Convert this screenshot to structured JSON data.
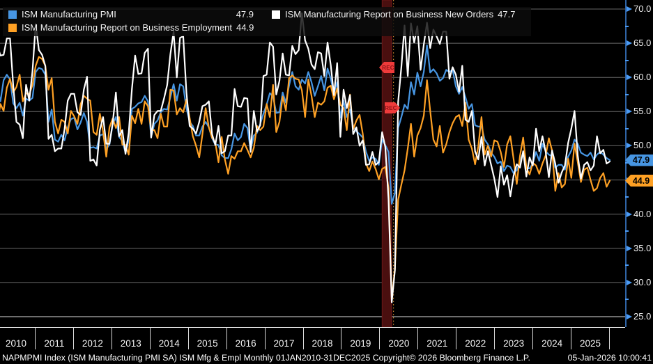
{
  "legend": {
    "items": [
      {
        "name": "ISM Manufacturing PMI",
        "value": "47.9",
        "color": "#4796e3"
      },
      {
        "name": "ISM Manufacturing Report on Business Employment",
        "value": "44.9",
        "color": "#ffa124"
      },
      {
        "name": "ISM Manufacturing Report on Business New Orders",
        "value": "47.7",
        "color": "#ffffff"
      }
    ]
  },
  "rec_tags": {
    "label_1": "REC",
    "label_2": "REC"
  },
  "y_axis": {
    "ticks": [
      70,
      65,
      60,
      55,
      50,
      45,
      40,
      35,
      30,
      25
    ],
    "minor_step": 2.5
  },
  "x_axis": {
    "years": [
      "2010",
      "2011",
      "2012",
      "2013",
      "2014",
      "2015",
      "2016",
      "2017",
      "2018",
      "2019",
      "2020",
      "2021",
      "2022",
      "2023",
      "2024",
      "2025"
    ]
  },
  "badges": [
    {
      "value": "47.9",
      "color_class": "badge-blue"
    },
    {
      "value": "44.9",
      "color_class": "badge-orange"
    }
  ],
  "status_bar": {
    "left": "NAPMPMI Index (ISM Manufacturing PMI SA) ISM Mfg & Empl Monthly 01JAN2010-31DEC2025  Copyright© 2026 Bloomberg Finance L.P.",
    "right": "05-Jan-2026 10:00:41"
  },
  "colors": {
    "pmi_line": "#4796e3",
    "employment_line": "#ffa124",
    "new_orders_line": "#ffffff",
    "axis_blue": "#4b9bf5",
    "recession_band": "#4a0f0f",
    "rec_tag_red": "#ef3b3b"
  },
  "chart_data": {
    "type": "line",
    "title": "",
    "x_unit": "monthly",
    "x_start_year": 2010,
    "x_range": [
      "01JAN2010",
      "31DEC2025"
    ],
    "ylim": [
      25,
      70
    ],
    "grid": true,
    "legend_position": "top-left",
    "recession_band": {
      "start": "2020-01",
      "end": "2020-03"
    },
    "series": [
      {
        "name": "ISM Manufacturing PMI",
        "color": "#4796e3",
        "last": 47.9,
        "values": [
          58.4,
          56.5,
          59.6,
          60.4,
          59.7,
          56.2,
          55.5,
          56.3,
          54.4,
          56.9,
          56.6,
          57.0,
          60.8,
          61.4,
          61.2,
          60.4,
          53.5,
          55.3,
          50.9,
          50.6,
          51.6,
          50.8,
          52.7,
          53.9,
          54.1,
          52.4,
          53.4,
          54.8,
          53.5,
          49.7,
          49.8,
          49.6,
          51.5,
          51.7,
          49.5,
          50.2,
          53.1,
          54.2,
          51.3,
          50.7,
          49.0,
          50.9,
          55.4,
          55.7,
          56.2,
          56.4,
          57.3,
          56.5,
          51.3,
          53.2,
          53.7,
          54.9,
          55.4,
          55.3,
          57.1,
          59.0,
          56.6,
          59.0,
          58.7,
          55.5,
          53.5,
          52.9,
          51.5,
          51.5,
          52.8,
          53.5,
          52.7,
          51.1,
          50.2,
          50.1,
          48.6,
          48.2,
          48.2,
          49.5,
          51.8,
          50.8,
          51.3,
          53.2,
          52.6,
          49.4,
          51.5,
          51.9,
          53.2,
          54.7,
          56.0,
          57.7,
          57.2,
          54.8,
          54.9,
          57.8,
          56.3,
          58.8,
          60.8,
          58.7,
          58.2,
          59.7,
          59.1,
          60.8,
          59.3,
          57.3,
          58.7,
          60.2,
          58.1,
          61.3,
          59.8,
          57.7,
          59.3,
          54.1,
          56.6,
          54.2,
          55.3,
          52.8,
          52.1,
          51.7,
          51.2,
          49.1,
          47.8,
          48.3,
          48.1,
          47.2,
          50.9,
          50.1,
          49.1,
          41.5,
          43.1,
          52.6,
          54.2,
          56.0,
          55.4,
          59.3,
          57.5,
          60.7,
          58.7,
          60.8,
          64.7,
          60.7,
          61.2,
          60.6,
          59.5,
          59.9,
          61.1,
          60.8,
          61.1,
          58.7,
          57.6,
          58.6,
          57.1,
          55.4,
          56.1,
          53.0,
          52.8,
          52.8,
          50.9,
          50.2,
          49.0,
          48.4,
          47.4,
          47.7,
          46.3,
          47.1,
          46.9,
          46.0,
          46.4,
          47.6,
          49.0,
          46.7,
          46.7,
          47.4,
          49.1,
          47.8,
          50.3,
          49.2,
          48.7,
          48.5,
          46.8,
          47.2,
          47.2,
          46.5,
          48.4,
          49.3,
          50.9,
          50.3,
          49.0,
          48.7,
          48.5,
          49.0,
          48.0,
          48.7,
          49.1,
          48.7,
          48.2,
          47.9
        ]
      },
      {
        "name": "ISM Manufacturing Report on Business Employment",
        "color": "#ffa124",
        "last": 44.9,
        "values": [
          53.3,
          56.1,
          55.1,
          58.5,
          59.8,
          57.8,
          58.6,
          60.4,
          56.5,
          57.7,
          57.5,
          58.9,
          61.7,
          63.0,
          62.7,
          61.7,
          58.2,
          59.9,
          53.5,
          51.8,
          53.8,
          53.5,
          51.8,
          55.1,
          54.3,
          53.2,
          56.1,
          57.3,
          56.9,
          56.6,
          52.0,
          51.6,
          54.7,
          52.1,
          48.4,
          52.7,
          54.0,
          52.6,
          54.2,
          50.2,
          50.1,
          48.7,
          54.4,
          53.3,
          55.4,
          53.2,
          56.5,
          55.8,
          52.3,
          52.3,
          51.1,
          54.7,
          52.8,
          52.8,
          58.2,
          58.1,
          54.6,
          55.5,
          54.9,
          56.8,
          54.1,
          51.4,
          50.0,
          48.3,
          51.7,
          55.5,
          52.7,
          51.2,
          50.5,
          47.6,
          51.3,
          48.0,
          45.9,
          48.5,
          48.1,
          49.2,
          49.2,
          50.4,
          49.4,
          48.3,
          49.7,
          52.9,
          52.3,
          52.8,
          56.1,
          54.2,
          58.9,
          52.0,
          53.5,
          57.2,
          55.2,
          59.9,
          60.3,
          59.8,
          59.7,
          58.1,
          54.2,
          59.7,
          57.3,
          54.2,
          56.3,
          56.0,
          56.5,
          58.5,
          58.8,
          56.8,
          58.4,
          56.0,
          55.5,
          52.3,
          57.5,
          52.4,
          53.7,
          54.5,
          51.7,
          47.4,
          46.3,
          47.7,
          46.6,
          45.1,
          46.6,
          46.9,
          43.8,
          27.5,
          32.1,
          42.1,
          44.3,
          46.4,
          49.6,
          53.2,
          48.4,
          51.5,
          52.6,
          54.4,
          59.6,
          55.1,
          50.9,
          49.9,
          52.9,
          49.0,
          50.2,
          52.0,
          53.3,
          54.2,
          54.5,
          52.9,
          56.3,
          50.9,
          49.6,
          47.3,
          49.9,
          54.2,
          48.7,
          50.0,
          48.4,
          50.8,
          50.6,
          49.1,
          46.9,
          50.2,
          51.4,
          48.1,
          44.4,
          48.5,
          51.2,
          46.8,
          45.8,
          47.5,
          47.1,
          45.9,
          47.4,
          48.6,
          51.1,
          49.3,
          43.4,
          46.0,
          43.9,
          44.4,
          48.1,
          45.3,
          50.3,
          47.6,
          44.7,
          46.5,
          46.8,
          45.0,
          43.4,
          43.8,
          45.3,
          46.0,
          44.0,
          44.9
        ]
      },
      {
        "name": "ISM Manufacturing Report on Business New Orders",
        "color": "#ffffff",
        "last": 47.7,
        "values": [
          64.8,
          63.2,
          63.3,
          65.7,
          65.7,
          58.8,
          53.5,
          53.1,
          51.1,
          58.9,
          56.6,
          60.9,
          67.8,
          64.0,
          63.3,
          61.7,
          51.0,
          51.6,
          49.2,
          49.6,
          49.6,
          52.4,
          56.6,
          57.6,
          57.6,
          54.9,
          54.5,
          58.2,
          60.1,
          47.8,
          48.0,
          47.1,
          52.3,
          54.2,
          50.3,
          50.3,
          53.3,
          57.8,
          51.4,
          52.3,
          48.8,
          51.9,
          58.3,
          63.2,
          60.5,
          60.6,
          63.6,
          64.2,
          51.2,
          54.5,
          55.1,
          55.1,
          56.9,
          58.9,
          63.4,
          66.7,
          60.0,
          65.8,
          66.0,
          57.8,
          52.9,
          52.5,
          51.8,
          53.5,
          55.8,
          56.0,
          56.5,
          51.7,
          50.1,
          52.9,
          48.9,
          49.2,
          51.5,
          51.5,
          58.3,
          55.8,
          55.7,
          57.0,
          56.9,
          49.1,
          55.1,
          52.1,
          53.0,
          60.2,
          60.4,
          65.1,
          64.5,
          57.5,
          59.5,
          63.5,
          60.4,
          60.3,
          64.6,
          63.4,
          64.0,
          69.4,
          65.4,
          64.2,
          61.9,
          61.2,
          63.7,
          63.5,
          60.2,
          65.1,
          61.8,
          57.4,
          62.1,
          51.3,
          58.2,
          55.5,
          57.4,
          51.7,
          52.7,
          50.0,
          50.8,
          47.2,
          47.3,
          49.1,
          47.2,
          47.6,
          52.0,
          49.8,
          42.2,
          27.1,
          31.8,
          56.4,
          61.5,
          67.6,
          60.2,
          67.9,
          65.1,
          67.5,
          61.1,
          64.8,
          68.0,
          64.3,
          67.0,
          66.0,
          64.9,
          66.7,
          66.7,
          59.8,
          61.5,
          60.4,
          57.9,
          61.7,
          53.8,
          53.5,
          55.1,
          49.2,
          48.0,
          51.3,
          47.1,
          49.2,
          47.2,
          45.2,
          42.5,
          47.0,
          44.3,
          45.7,
          42.6,
          45.6,
          47.3,
          46.8,
          49.2,
          45.5,
          48.3,
          47.1,
          52.5,
          49.2,
          51.4,
          49.1,
          45.4,
          49.3,
          47.4,
          44.6,
          46.1,
          47.1,
          50.4,
          52.5,
          55.1,
          48.6,
          45.2,
          47.2,
          47.6,
          46.4,
          47.1,
          51.4,
          48.9,
          49.4,
          47.4,
          47.7
        ]
      }
    ]
  }
}
